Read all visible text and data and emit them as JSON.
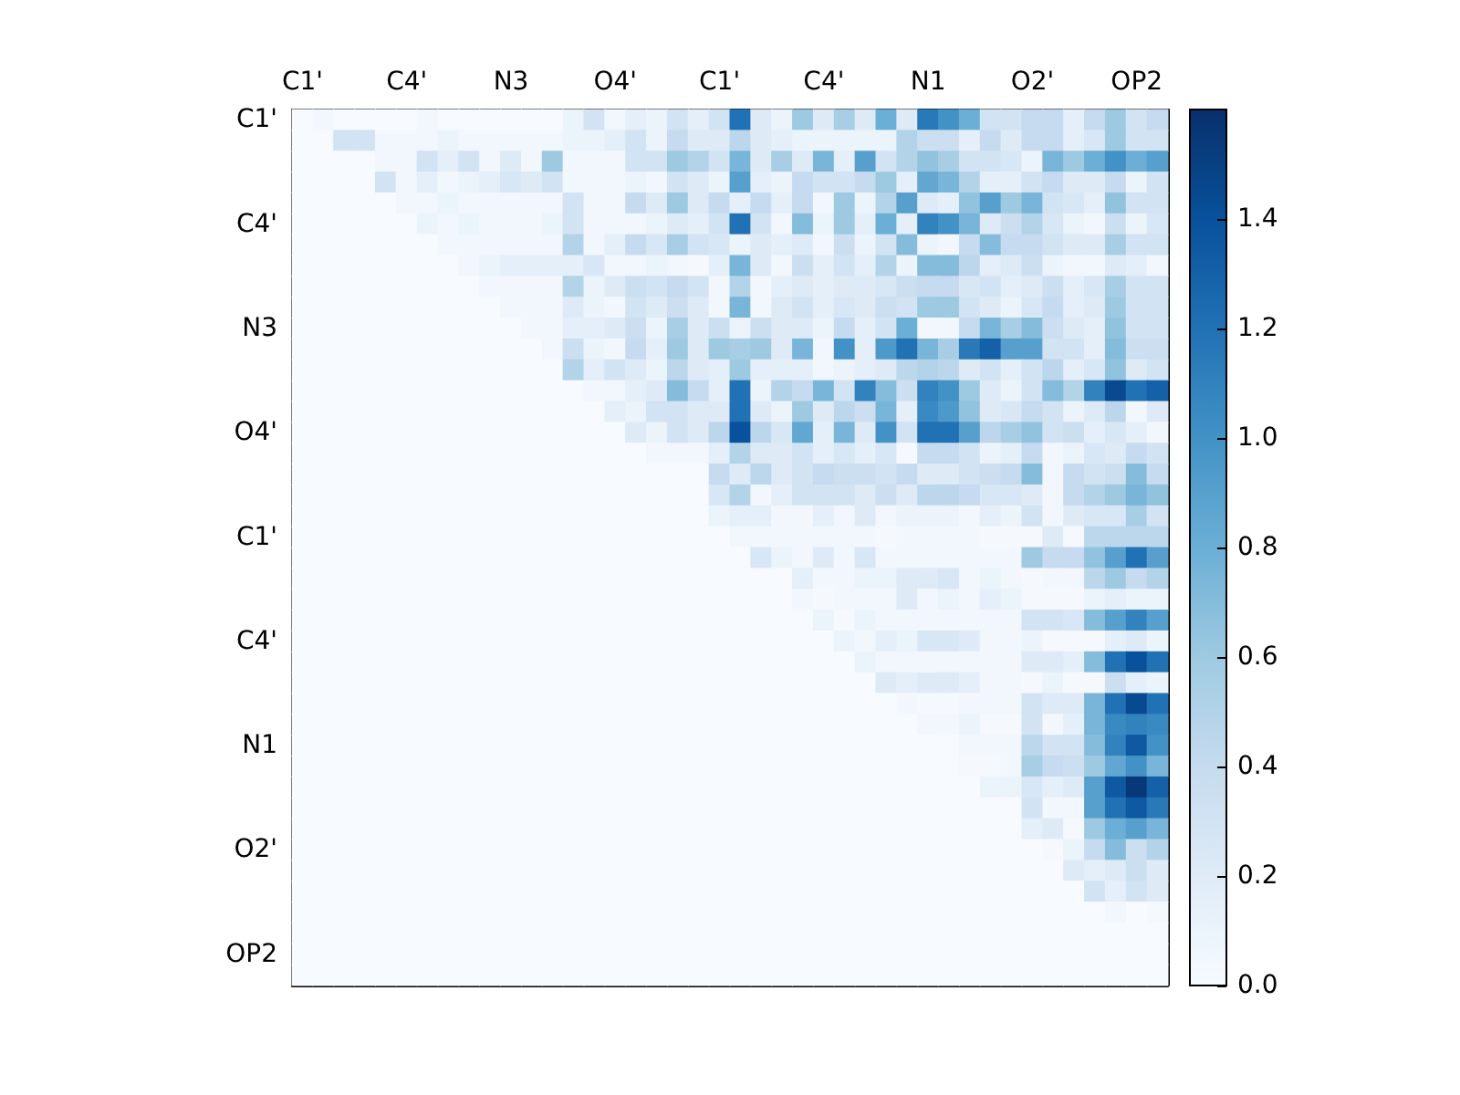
{
  "chart_data": {
    "type": "heatmap",
    "categories": [
      "C1'",
      null,
      null,
      null,
      null,
      "C4'",
      null,
      null,
      null,
      null,
      "N3",
      null,
      null,
      null,
      null,
      "O4'",
      null,
      null,
      null,
      null,
      "C1'",
      null,
      null,
      null,
      null,
      "C4'",
      null,
      null,
      null,
      null,
      "N1",
      null,
      null,
      null,
      null,
      "O2'",
      null,
      null,
      null,
      null,
      "OP2",
      null
    ],
    "y_categories": [
      "C1'",
      null,
      null,
      null,
      null,
      "C4'",
      null,
      null,
      null,
      null,
      "N3",
      null,
      null,
      null,
      null,
      "O4'",
      null,
      null,
      null,
      null,
      "C1'",
      null,
      null,
      null,
      null,
      "C4'",
      null,
      null,
      null,
      null,
      "N1",
      null,
      null,
      null,
      null,
      "O2'",
      null,
      null,
      null,
      null,
      "OP2",
      null
    ],
    "clim": [
      0,
      1.6
    ],
    "cticks": [
      {
        "value": 0,
        "label": "0.0"
      },
      0.2,
      0.4,
      0.6,
      0.8,
      {
        "value": 1,
        "label": "1.0"
      },
      1.2,
      1.4
    ],
    "cells": [
      [
        0,
        0.05,
        0,
        0,
        0,
        0,
        0.05,
        0,
        0,
        0,
        0,
        0,
        0,
        0.1,
        0.3,
        0.05,
        0.15,
        0.1,
        0.3,
        0.15,
        0.3,
        1.2,
        0.2,
        0.1,
        0.6,
        0.2,
        0.55,
        0.2,
        0.8,
        0.2,
        1.15,
        1.0,
        0.8,
        0.3,
        0.3,
        0.4,
        0.4,
        0.15,
        0.4,
        0.6,
        0.3,
        0.4
      ],
      [
        0,
        0,
        0.3,
        0.3,
        0.05,
        0.05,
        0.05,
        0.1,
        0.05,
        0.05,
        0.05,
        0.05,
        0.05,
        0.1,
        0.1,
        0.15,
        0.3,
        0.1,
        0.4,
        0.2,
        0.2,
        0.45,
        0.2,
        0.15,
        0.1,
        0.1,
        0.1,
        0.1,
        0.1,
        0.5,
        0.35,
        0.35,
        0.15,
        0.4,
        0.2,
        0.4,
        0.4,
        0.15,
        0.25,
        0.6,
        0.3,
        0.3
      ],
      [
        0,
        0,
        0,
        0,
        0.05,
        0.05,
        0.3,
        0.15,
        0.3,
        0.05,
        0.2,
        0.05,
        0.6,
        0.05,
        0.05,
        0.05,
        0.3,
        0.3,
        0.6,
        0.5,
        0.3,
        0.75,
        0.2,
        0.55,
        0.2,
        0.75,
        0.15,
        0.9,
        0.3,
        0.5,
        0.65,
        0.55,
        0.3,
        0.3,
        0.25,
        0.1,
        0.75,
        0.6,
        0.8,
        1.0,
        0.8,
        0.9
      ],
      [
        0,
        0,
        0,
        0,
        0.3,
        0.05,
        0.15,
        0.05,
        0.1,
        0.15,
        0.25,
        0.2,
        0.3,
        0.05,
        0.05,
        0.05,
        0.1,
        0.05,
        0.3,
        0.2,
        0.1,
        0.9,
        0.15,
        0.1,
        0.4,
        0.3,
        0.3,
        0.4,
        0.6,
        0.15,
        0.85,
        0.75,
        0.5,
        0.15,
        0.15,
        0.3,
        0.4,
        0.2,
        0.2,
        0.4,
        0.1,
        0.3
      ],
      [
        0,
        0,
        0,
        0,
        0,
        0.05,
        0.05,
        0.1,
        0.05,
        0.05,
        0.05,
        0.05,
        0.05,
        0.3,
        0.05,
        0.05,
        0.4,
        0.2,
        0.6,
        0.2,
        0.4,
        0.15,
        0.4,
        0.15,
        0.4,
        0.05,
        0.6,
        0.1,
        0.5,
        0.9,
        0.2,
        0.15,
        0.65,
        0.9,
        0.6,
        0.75,
        0.3,
        0.25,
        0.15,
        0.65,
        0.3,
        0.3
      ],
      [
        0,
        0,
        0,
        0,
        0,
        0,
        0.1,
        0.05,
        0.1,
        0.05,
        0.05,
        0.05,
        0.1,
        0.3,
        0.05,
        0.05,
        0.05,
        0.1,
        0.2,
        0.15,
        0.3,
        1.2,
        0.3,
        0.05,
        0.7,
        0.1,
        0.6,
        0.15,
        0.8,
        0.15,
        1.1,
        1.0,
        0.75,
        0.2,
        0.35,
        0.5,
        0.25,
        0.1,
        0.05,
        0.35,
        0.1,
        0.25
      ],
      [
        0,
        0,
        0,
        0,
        0,
        0,
        0,
        0.05,
        0.05,
        0.05,
        0.05,
        0.05,
        0.05,
        0.5,
        0.05,
        0.15,
        0.4,
        0.25,
        0.55,
        0.3,
        0.25,
        0.1,
        0.2,
        0.15,
        0.2,
        0.05,
        0.35,
        0.1,
        0.3,
        0.7,
        0.1,
        0.05,
        0.4,
        0.7,
        0.4,
        0.4,
        0.3,
        0.2,
        0.2,
        0.55,
        0.3,
        0.3
      ],
      [
        0,
        0,
        0,
        0,
        0,
        0,
        0,
        0,
        0.05,
        0.1,
        0.15,
        0.15,
        0.15,
        0.15,
        0.25,
        0.05,
        0.05,
        0.1,
        0.05,
        0.02,
        0.15,
        0.75,
        0.2,
        0.05,
        0.35,
        0.15,
        0.3,
        0.15,
        0.5,
        0.1,
        0.7,
        0.7,
        0.45,
        0.15,
        0.2,
        0.35,
        0.1,
        0.05,
        0.05,
        0.2,
        0.15,
        0.05
      ],
      [
        0,
        0,
        0,
        0,
        0,
        0,
        0,
        0,
        0,
        0.05,
        0.05,
        0.05,
        0.05,
        0.5,
        0.1,
        0.2,
        0.35,
        0.3,
        0.4,
        0.3,
        0.05,
        0.5,
        0.05,
        0.15,
        0.2,
        0.15,
        0.2,
        0.2,
        0.25,
        0.35,
        0.4,
        0.4,
        0.25,
        0.3,
        0.15,
        0.2,
        0.35,
        0.15,
        0.25,
        0.55,
        0.3,
        0.3
      ],
      [
        0,
        0,
        0,
        0,
        0,
        0,
        0,
        0,
        0,
        0,
        0.05,
        0.05,
        0.05,
        0.2,
        0.1,
        0.05,
        0.3,
        0.2,
        0.35,
        0.2,
        0.05,
        0.75,
        0.05,
        0.2,
        0.3,
        0.15,
        0.25,
        0.2,
        0.35,
        0.3,
        0.6,
        0.6,
        0.3,
        0.2,
        0.1,
        0.25,
        0.4,
        0.15,
        0.2,
        0.6,
        0.3,
        0.3
      ],
      [
        0,
        0,
        0,
        0,
        0,
        0,
        0,
        0,
        0,
        0,
        0,
        0.05,
        0.05,
        0.15,
        0.15,
        0.2,
        0.35,
        0.1,
        0.55,
        0.2,
        0.35,
        0.1,
        0.35,
        0.2,
        0.2,
        0.1,
        0.4,
        0.15,
        0.3,
        0.8,
        0.05,
        0.05,
        0.4,
        0.75,
        0.55,
        0.7,
        0.35,
        0.2,
        0.15,
        0.65,
        0.3,
        0.3
      ],
      [
        0,
        0,
        0,
        0,
        0,
        0,
        0,
        0,
        0,
        0,
        0,
        0,
        0.05,
        0.35,
        0.1,
        0.05,
        0.4,
        0.15,
        0.6,
        0.2,
        0.6,
        0.55,
        0.6,
        0.2,
        0.75,
        0.05,
        1.0,
        0.15,
        0.95,
        1.2,
        0.75,
        0.55,
        1.15,
        1.3,
        0.9,
        0.9,
        0.3,
        0.3,
        0.15,
        0.7,
        0.35,
        0.35
      ],
      [
        0,
        0,
        0,
        0,
        0,
        0,
        0,
        0,
        0,
        0,
        0,
        0,
        0,
        0.5,
        0.15,
        0.3,
        0.2,
        0.1,
        0.45,
        0.2,
        0.15,
        0.6,
        0.15,
        0.15,
        0.15,
        0.05,
        0.1,
        0.15,
        0.2,
        0.45,
        0.5,
        0.45,
        0.2,
        0.3,
        0.15,
        0.3,
        0.45,
        0.15,
        0.25,
        0.65,
        0.2,
        0.3
      ],
      [
        0,
        0,
        0,
        0,
        0,
        0,
        0,
        0,
        0,
        0,
        0,
        0,
        0,
        0,
        0.05,
        0.05,
        0.15,
        0.2,
        0.7,
        0.4,
        0.15,
        1.2,
        0.1,
        0.5,
        0.4,
        0.75,
        0.3,
        1.1,
        0.7,
        0.35,
        1.1,
        1.0,
        0.6,
        0.2,
        0.1,
        0.3,
        0.7,
        0.5,
        1.1,
        1.45,
        1.2,
        1.3
      ],
      [
        0,
        0,
        0,
        0,
        0,
        0,
        0,
        0,
        0,
        0,
        0,
        0,
        0,
        0,
        0,
        0.15,
        0.1,
        0.3,
        0.3,
        0.2,
        0.2,
        1.2,
        0.2,
        0.1,
        0.6,
        0.2,
        0.45,
        0.35,
        0.75,
        0.15,
        1.05,
        0.95,
        0.65,
        0.2,
        0.25,
        0.4,
        0.3,
        0.1,
        0.2,
        0.45,
        0.05,
        0.2
      ],
      [
        0,
        0,
        0,
        0,
        0,
        0,
        0,
        0,
        0,
        0,
        0,
        0,
        0,
        0,
        0,
        0,
        0.2,
        0.1,
        0.3,
        0.2,
        0.45,
        1.4,
        0.45,
        0.25,
        0.85,
        0.15,
        0.75,
        0.2,
        1.0,
        0.3,
        1.2,
        1.2,
        0.9,
        0.45,
        0.55,
        0.65,
        0.3,
        0.35,
        0.15,
        0.25,
        0.15,
        0.05
      ],
      [
        0,
        0,
        0,
        0,
        0,
        0,
        0,
        0,
        0,
        0,
        0,
        0,
        0,
        0,
        0,
        0,
        0,
        0.05,
        0.05,
        0.05,
        0.15,
        0.5,
        0.2,
        0.2,
        0.3,
        0.15,
        0.25,
        0.15,
        0.25,
        0.02,
        0.4,
        0.4,
        0.3,
        0.1,
        0.15,
        0.4,
        0.05,
        0.1,
        0.25,
        0.2,
        0.4,
        0.3
      ],
      [
        0,
        0,
        0,
        0,
        0,
        0,
        0,
        0,
        0,
        0,
        0,
        0,
        0,
        0,
        0,
        0,
        0,
        0,
        0,
        0,
        0.4,
        0.2,
        0.45,
        0.2,
        0.3,
        0.4,
        0.35,
        0.35,
        0.3,
        0.4,
        0.2,
        0.2,
        0.3,
        0.35,
        0.4,
        0.7,
        0.05,
        0.4,
        0.3,
        0.35,
        0.7,
        0.4
      ],
      [
        0,
        0,
        0,
        0,
        0,
        0,
        0,
        0,
        0,
        0,
        0,
        0,
        0,
        0,
        0,
        0,
        0,
        0,
        0,
        0,
        0.25,
        0.5,
        0.05,
        0.15,
        0.3,
        0.3,
        0.3,
        0.2,
        0.35,
        0.2,
        0.45,
        0.45,
        0.4,
        0.25,
        0.25,
        0.2,
        0.05,
        0.4,
        0.5,
        0.6,
        0.75,
        0.65
      ],
      [
        0,
        0,
        0,
        0,
        0,
        0,
        0,
        0,
        0,
        0,
        0,
        0,
        0,
        0,
        0,
        0,
        0,
        0,
        0,
        0,
        0.1,
        0.15,
        0.15,
        0.05,
        0.05,
        0.15,
        0.05,
        0.2,
        0.05,
        0.1,
        0.1,
        0.1,
        0.05,
        0.15,
        0.1,
        0.3,
        0.05,
        0.2,
        0.25,
        0.25,
        0.55,
        0.3
      ],
      [
        0,
        0,
        0,
        0,
        0,
        0,
        0,
        0,
        0,
        0,
        0,
        0,
        0,
        0,
        0,
        0,
        0,
        0,
        0,
        0,
        0,
        0.05,
        0.05,
        0.05,
        0.05,
        0.05,
        0.05,
        0.05,
        0.02,
        0.05,
        0.05,
        0.05,
        0.05,
        0.02,
        0.02,
        0.02,
        0.2,
        0.02,
        0.45,
        0.45,
        0.45,
        0.45
      ],
      [
        0,
        0,
        0,
        0,
        0,
        0,
        0,
        0,
        0,
        0,
        0,
        0,
        0,
        0,
        0,
        0,
        0,
        0,
        0,
        0,
        0,
        0,
        0.25,
        0.1,
        0.05,
        0.2,
        0.05,
        0.25,
        0.05,
        0.05,
        0.05,
        0.05,
        0.05,
        0.05,
        0.05,
        0.6,
        0.4,
        0.4,
        0.65,
        0.9,
        1.2,
        0.9
      ],
      [
        0,
        0,
        0,
        0,
        0,
        0,
        0,
        0,
        0,
        0,
        0,
        0,
        0,
        0,
        0,
        0,
        0,
        0,
        0,
        0,
        0,
        0,
        0,
        0,
        0.15,
        0.05,
        0.05,
        0.1,
        0.1,
        0.2,
        0.2,
        0.25,
        0.05,
        0.1,
        0.05,
        0.02,
        0.05,
        0.05,
        0.45,
        0.6,
        0.4,
        0.5
      ],
      [
        0,
        0,
        0,
        0,
        0,
        0,
        0,
        0,
        0,
        0,
        0,
        0,
        0,
        0,
        0,
        0,
        0,
        0,
        0,
        0,
        0,
        0,
        0,
        0,
        0.05,
        0.02,
        0.05,
        0.05,
        0.05,
        0.2,
        0.05,
        0.1,
        0.05,
        0.15,
        0.1,
        0.02,
        0.02,
        0.02,
        0.1,
        0.15,
        0.1,
        0.1
      ],
      [
        0,
        0,
        0,
        0,
        0,
        0,
        0,
        0,
        0,
        0,
        0,
        0,
        0,
        0,
        0,
        0,
        0,
        0,
        0,
        0,
        0,
        0,
        0,
        0,
        0,
        0.1,
        0.02,
        0.1,
        0.05,
        0.05,
        0.05,
        0.05,
        0.05,
        0.05,
        0.05,
        0.3,
        0.3,
        0.25,
        0.7,
        0.9,
        1.1,
        0.9
      ],
      [
        0,
        0,
        0,
        0,
        0,
        0,
        0,
        0,
        0,
        0,
        0,
        0,
        0,
        0,
        0,
        0,
        0,
        0,
        0,
        0,
        0,
        0,
        0,
        0,
        0,
        0,
        0.1,
        0.05,
        0.15,
        0.1,
        0.25,
        0.25,
        0.2,
        0.05,
        0.05,
        0.1,
        0.02,
        0.02,
        0.02,
        0.15,
        0.2,
        0.1
      ],
      [
        0,
        0,
        0,
        0,
        0,
        0,
        0,
        0,
        0,
        0,
        0,
        0,
        0,
        0,
        0,
        0,
        0,
        0,
        0,
        0,
        0,
        0,
        0,
        0,
        0,
        0,
        0,
        0.1,
        0.05,
        0.05,
        0.05,
        0.05,
        0.05,
        0.05,
        0.05,
        0.2,
        0.2,
        0.15,
        0.7,
        1.2,
        1.4,
        1.2
      ],
      [
        0,
        0,
        0,
        0,
        0,
        0,
        0,
        0,
        0,
        0,
        0,
        0,
        0,
        0,
        0,
        0,
        0,
        0,
        0,
        0,
        0,
        0,
        0,
        0,
        0,
        0,
        0,
        0,
        0.2,
        0.15,
        0.2,
        0.2,
        0.15,
        0.05,
        0.05,
        0.02,
        0.1,
        0.02,
        0.02,
        0.35,
        0.15,
        0.1
      ],
      [
        0,
        0,
        0,
        0,
        0,
        0,
        0,
        0,
        0,
        0,
        0,
        0,
        0,
        0,
        0,
        0,
        0,
        0,
        0,
        0,
        0,
        0,
        0,
        0,
        0,
        0,
        0,
        0,
        0,
        0.05,
        0.02,
        0.02,
        0.05,
        0.05,
        0.05,
        0.3,
        0.2,
        0.2,
        0.75,
        1.2,
        1.45,
        1.2
      ],
      [
        0,
        0,
        0,
        0,
        0,
        0,
        0,
        0,
        0,
        0,
        0,
        0,
        0,
        0,
        0,
        0,
        0,
        0,
        0,
        0,
        0,
        0,
        0,
        0,
        0,
        0,
        0,
        0,
        0,
        0,
        0.05,
        0.05,
        0.1,
        0.02,
        0.02,
        0.3,
        0.05,
        0.15,
        0.75,
        1.05,
        1.1,
        1.05
      ],
      [
        0,
        0,
        0,
        0,
        0,
        0,
        0,
        0,
        0,
        0,
        0,
        0,
        0,
        0,
        0,
        0,
        0,
        0,
        0,
        0,
        0,
        0,
        0,
        0,
        0,
        0,
        0,
        0,
        0,
        0,
        0,
        0,
        0.05,
        0.05,
        0.05,
        0.45,
        0.3,
        0.3,
        0.7,
        1.1,
        1.35,
        1.0
      ],
      [
        0,
        0,
        0,
        0,
        0,
        0,
        0,
        0,
        0,
        0,
        0,
        0,
        0,
        0,
        0,
        0,
        0,
        0,
        0,
        0,
        0,
        0,
        0,
        0,
        0,
        0,
        0,
        0,
        0,
        0,
        0,
        0,
        0.02,
        0.02,
        0.05,
        0.55,
        0.4,
        0.35,
        0.6,
        0.85,
        1.0,
        0.75
      ],
      [
        0,
        0,
        0,
        0,
        0,
        0,
        0,
        0,
        0,
        0,
        0,
        0,
        0,
        0,
        0,
        0,
        0,
        0,
        0,
        0,
        0,
        0,
        0,
        0,
        0,
        0,
        0,
        0,
        0,
        0,
        0,
        0,
        0,
        0.1,
        0.1,
        0.25,
        0.15,
        0.2,
        0.9,
        1.35,
        1.55,
        1.3
      ],
      [
        0,
        0,
        0,
        0,
        0,
        0,
        0,
        0,
        0,
        0,
        0,
        0,
        0,
        0,
        0,
        0,
        0,
        0,
        0,
        0,
        0,
        0,
        0,
        0,
        0,
        0,
        0,
        0,
        0,
        0,
        0,
        0,
        0,
        0,
        0,
        0.3,
        0.05,
        0.05,
        0.9,
        1.2,
        1.35,
        1.15
      ],
      [
        0,
        0,
        0,
        0,
        0,
        0,
        0,
        0,
        0,
        0,
        0,
        0,
        0,
        0,
        0,
        0,
        0,
        0,
        0,
        0,
        0,
        0,
        0,
        0,
        0,
        0,
        0,
        0,
        0,
        0,
        0,
        0,
        0,
        0,
        0,
        0.15,
        0.2,
        0.02,
        0.6,
        0.8,
        0.9,
        0.75
      ],
      [
        0,
        0,
        0,
        0,
        0,
        0,
        0,
        0,
        0,
        0,
        0,
        0,
        0,
        0,
        0,
        0,
        0,
        0,
        0,
        0,
        0,
        0,
        0,
        0,
        0,
        0,
        0,
        0,
        0,
        0,
        0,
        0,
        0,
        0,
        0,
        0,
        0.02,
        0.1,
        0.4,
        0.7,
        0.35,
        0.5
      ],
      [
        0,
        0,
        0,
        0,
        0,
        0,
        0,
        0,
        0,
        0,
        0,
        0,
        0,
        0,
        0,
        0,
        0,
        0,
        0,
        0,
        0,
        0,
        0,
        0,
        0,
        0,
        0,
        0,
        0,
        0,
        0,
        0,
        0,
        0,
        0,
        0,
        0,
        0.2,
        0.15,
        0.2,
        0.35,
        0.2
      ],
      [
        0,
        0,
        0,
        0,
        0,
        0,
        0,
        0,
        0,
        0,
        0,
        0,
        0,
        0,
        0,
        0,
        0,
        0,
        0,
        0,
        0,
        0,
        0,
        0,
        0,
        0,
        0,
        0,
        0,
        0,
        0,
        0,
        0,
        0,
        0,
        0,
        0,
        0,
        0.3,
        0.15,
        0.3,
        0.2
      ],
      [
        0,
        0,
        0,
        0,
        0,
        0,
        0,
        0,
        0,
        0,
        0,
        0,
        0,
        0,
        0,
        0,
        0,
        0,
        0,
        0,
        0,
        0,
        0,
        0,
        0,
        0,
        0,
        0,
        0,
        0,
        0,
        0,
        0,
        0,
        0,
        0,
        0,
        0,
        0,
        0.05,
        0,
        0.02
      ],
      [
        0,
        0,
        0,
        0,
        0,
        0,
        0,
        0,
        0,
        0,
        0,
        0,
        0,
        0,
        0,
        0,
        0,
        0,
        0,
        0,
        0,
        0,
        0,
        0,
        0,
        0,
        0,
        0,
        0,
        0,
        0,
        0,
        0,
        0,
        0,
        0,
        0,
        0,
        0,
        0,
        0,
        0
      ],
      [
        0,
        0,
        0,
        0,
        0,
        0,
        0,
        0,
        0,
        0,
        0,
        0,
        0,
        0,
        0,
        0,
        0,
        0,
        0,
        0,
        0,
        0,
        0,
        0,
        0,
        0,
        0,
        0,
        0,
        0,
        0,
        0,
        0,
        0,
        0,
        0,
        0,
        0,
        0,
        0,
        0,
        0
      ],
      [
        0,
        0,
        0,
        0,
        0,
        0,
        0,
        0,
        0,
        0,
        0,
        0,
        0,
        0,
        0,
        0,
        0,
        0,
        0,
        0,
        0,
        0,
        0,
        0,
        0,
        0,
        0,
        0,
        0,
        0,
        0,
        0,
        0,
        0,
        0,
        0,
        0,
        0,
        0,
        0,
        0,
        0
      ]
    ]
  }
}
